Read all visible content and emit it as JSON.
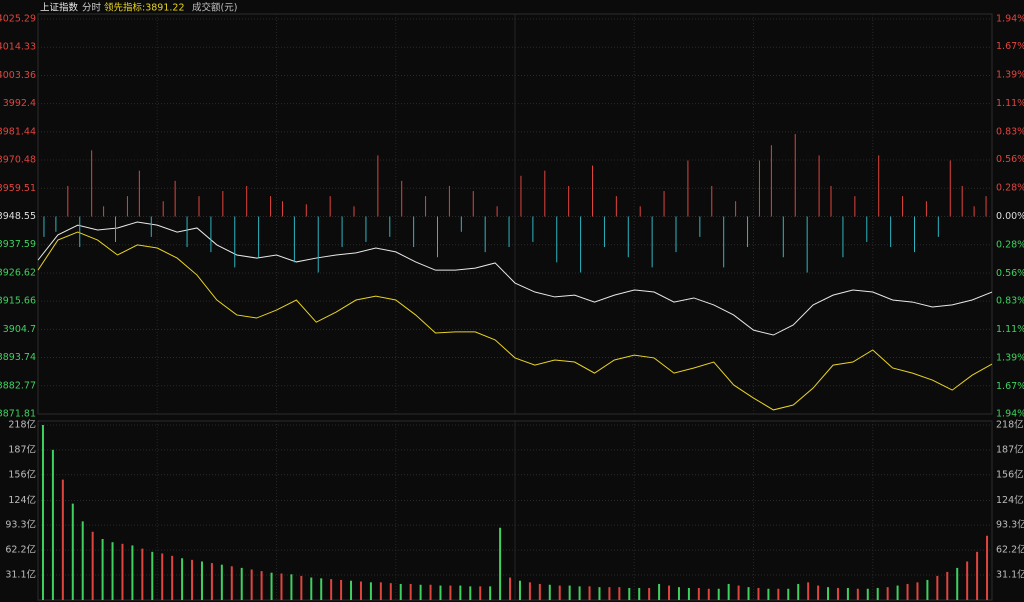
{
  "header": {
    "symbol": "上证指数",
    "mode": "分时",
    "indicator": "领先指标:3891.22",
    "volume_title": "成交额(元)"
  },
  "chart_data": [
    {
      "type": "line",
      "ylim": [
        3871.81,
        4025.29
      ],
      "yticks": [
        3871.81,
        3882.77,
        3893.74,
        3904.7,
        3915.66,
        3926.62,
        3937.59,
        3948.55,
        3959.51,
        3970.48,
        3981.44,
        3992.4,
        4003.36,
        4014.33,
        4025.29
      ],
      "y2lim": [
        -1.94,
        1.94
      ],
      "y2ticks": [
        {
          "value": -1.94,
          "label": "1.94%"
        },
        {
          "value": -1.67,
          "label": "1.67%"
        },
        {
          "value": -1.39,
          "label": "1.39%"
        },
        {
          "value": -1.11,
          "label": "1.11%"
        },
        {
          "value": -0.83,
          "label": "0.83%"
        },
        {
          "value": -0.56,
          "label": "0.56%"
        },
        {
          "value": -0.28,
          "label": "0.28%"
        },
        {
          "value": 0,
          "label": "0.00%"
        },
        {
          "value": 0.28,
          "label": "0.28%"
        },
        {
          "value": 0.56,
          "label": "0.56%"
        },
        {
          "value": 0.83,
          "label": "0.83%"
        },
        {
          "value": 1.11,
          "label": "1.11%"
        },
        {
          "value": 1.39,
          "label": "1.39%"
        },
        {
          "value": 1.67,
          "label": "1.67%"
        },
        {
          "value": 1.94,
          "label": "1.94%"
        }
      ],
      "up_color": "#e0443e",
      "down_color": "#3fd15f",
      "zero_color": "#dddddd",
      "grid": true,
      "series": [
        {
          "color": "#e8e8e8",
          "values": [
            3931.6,
            3941.4,
            3945.2,
            3943.3,
            3944.1,
            3946.4,
            3945.2,
            3942.5,
            3944.1,
            3937.5,
            3933.6,
            3932.4,
            3933.6,
            3930.9,
            3932.4,
            3933.6,
            3934.4,
            3936.3,
            3934.8,
            3930.9,
            3927.7,
            3927.7,
            3928.5,
            3930.5,
            3922.7,
            3919.2,
            3917.3,
            3918.0,
            3915.3,
            3918.0,
            3920.0,
            3919.2,
            3915.3,
            3916.9,
            3914.2,
            3910.3,
            3904.4,
            3902.5,
            3906.4,
            3914.2,
            3918.0,
            3920.0,
            3919.2,
            3916.1,
            3915.3,
            3913.4,
            3914.2,
            3916.1,
            3919.2
          ]
        },
        {
          "color": "#e8d424",
          "values": [
            3927.7,
            3939.4,
            3942.5,
            3939.4,
            3933.6,
            3937.5,
            3936.3,
            3932.4,
            3925.8,
            3916.1,
            3910.3,
            3909.1,
            3912.2,
            3916.1,
            3907.5,
            3911.4,
            3916.1,
            3917.6,
            3916.1,
            3910.3,
            3903.3,
            3903.7,
            3903.7,
            3900.6,
            3893.6,
            3890.8,
            3892.8,
            3892.0,
            3887.7,
            3892.8,
            3894.7,
            3893.6,
            3887.7,
            3889.7,
            3892.0,
            3883.1,
            3878.0,
            3873.4,
            3875.3,
            3881.9,
            3890.8,
            3892.0,
            3896.7,
            3889.7,
            3887.7,
            3885.0,
            3881.1,
            3886.9,
            3891.22
          ]
        },
        {
          "type": "bar",
          "axis": "y2",
          "up_color": "#e0443e",
          "down_color": "#2fb5c0",
          "values": [
            -0.2,
            -0.15,
            0.3,
            -0.3,
            0.65,
            0.1,
            -0.25,
            0.2,
            0.45,
            -0.2,
            0.15,
            0.35,
            -0.3,
            0.2,
            -0.35,
            0.25,
            -0.5,
            0.3,
            -0.4,
            0.2,
            0.15,
            -0.45,
            0.12,
            -0.55,
            0.2,
            -0.3,
            0.1,
            -0.25,
            0.6,
            -0.2,
            0.35,
            -0.3,
            0.2,
            -0.4,
            0.3,
            -0.15,
            0.25,
            -0.35,
            0.1,
            -0.3,
            0.4,
            -0.25,
            0.45,
            -0.45,
            0.3,
            -0.55,
            0.5,
            -0.3,
            0.2,
            -0.4,
            0.1,
            -0.5,
            0.25,
            -0.35,
            0.55,
            -0.2,
            0.3,
            -0.5,
            0.15,
            -0.3,
            0.55,
            0.7,
            -0.4,
            0.81,
            -0.55,
            0.6,
            0.3,
            -0.4,
            0.2,
            -0.25,
            0.6,
            -0.3,
            0.2,
            -0.35,
            0.15,
            -0.2,
            0.55,
            0.3,
            0.1,
            0.2
          ]
        }
      ]
    },
    {
      "type": "bar",
      "ylim": [
        0,
        218
      ],
      "yticks": [
        {
          "value": 31.1,
          "label": "31.1亿"
        },
        {
          "value": 62.2,
          "label": "62.2亿"
        },
        {
          "value": 93.3,
          "label": "93.3亿"
        },
        {
          "value": 124,
          "label": "124亿"
        },
        {
          "value": 156,
          "label": "156亿"
        },
        {
          "value": 187,
          "label": "187亿"
        },
        {
          "value": 218,
          "label": "218亿"
        }
      ],
      "values": [
        218,
        187,
        150,
        120,
        98,
        85,
        76,
        72,
        70,
        68,
        64,
        60,
        58,
        55,
        52,
        50,
        48,
        46,
        44,
        42,
        40,
        38,
        36,
        34,
        33,
        32,
        30,
        28,
        27,
        26,
        25,
        24,
        23,
        22,
        22,
        21,
        20,
        20,
        19,
        19,
        18,
        18,
        18,
        17,
        17,
        17,
        90,
        28,
        24,
        22,
        20,
        19,
        18,
        18,
        17,
        17,
        16,
        16,
        16,
        15,
        15,
        15,
        20,
        18,
        16,
        15,
        15,
        14,
        14,
        20,
        18,
        16,
        15,
        14,
        14,
        14,
        20,
        22,
        18,
        16,
        15,
        15,
        14,
        14,
        15,
        16,
        18,
        20,
        22,
        25,
        30,
        35,
        40,
        48,
        60,
        80
      ],
      "colors": [
        "#3fd15f",
        "#3fd15f",
        "#e0443e",
        "#3fd15f",
        "#3fd15f",
        "#e0443e",
        "#3fd15f",
        "#3fd15f",
        "#e0443e",
        "#3fd15f",
        "#e0443e",
        "#3fd15f",
        "#e0443e",
        "#e0443e",
        "#3fd15f",
        "#e0443e",
        "#3fd15f",
        "#e0443e",
        "#3fd15f",
        "#e0443e",
        "#3fd15f",
        "#e0443e",
        "#e0443e",
        "#3fd15f",
        "#e0443e",
        "#3fd15f",
        "#e0443e",
        "#3fd15f",
        "#3fd15f",
        "#e0443e",
        "#e0443e",
        "#3fd15f",
        "#e0443e",
        "#3fd15f",
        "#e0443e",
        "#e0443e",
        "#3fd15f",
        "#e0443e",
        "#3fd15f",
        "#e0443e",
        "#3fd15f",
        "#e0443e",
        "#3fd15f",
        "#3fd15f",
        "#e0443e",
        "#3fd15f",
        "#3fd15f",
        "#e0443e",
        "#3fd15f",
        "#e0443e",
        "#e0443e",
        "#3fd15f",
        "#e0443e",
        "#3fd15f",
        "#3fd15f",
        "#e0443e",
        "#3fd15f",
        "#e0443e",
        "#e0443e",
        "#3fd15f",
        "#3fd15f",
        "#e0443e",
        "#3fd15f",
        "#e0443e",
        "#3fd15f",
        "#3fd15f",
        "#e0443e",
        "#e0443e",
        "#3fd15f",
        "#3fd15f",
        "#e0443e",
        "#3fd15f",
        "#e0443e",
        "#3fd15f",
        "#e0443e",
        "#3fd15f",
        "#3fd15f",
        "#e0443e",
        "#e0443e",
        "#3fd15f",
        "#e0443e",
        "#3fd15f",
        "#e0443e",
        "#3fd15f",
        "#3fd15f",
        "#e0443e",
        "#3fd15f",
        "#e0443e",
        "#e0443e",
        "#3fd15f",
        "#e0443e",
        "#e0443e",
        "#3fd15f",
        "#e0443e",
        "#e0443e",
        "#e0443e"
      ]
    }
  ]
}
